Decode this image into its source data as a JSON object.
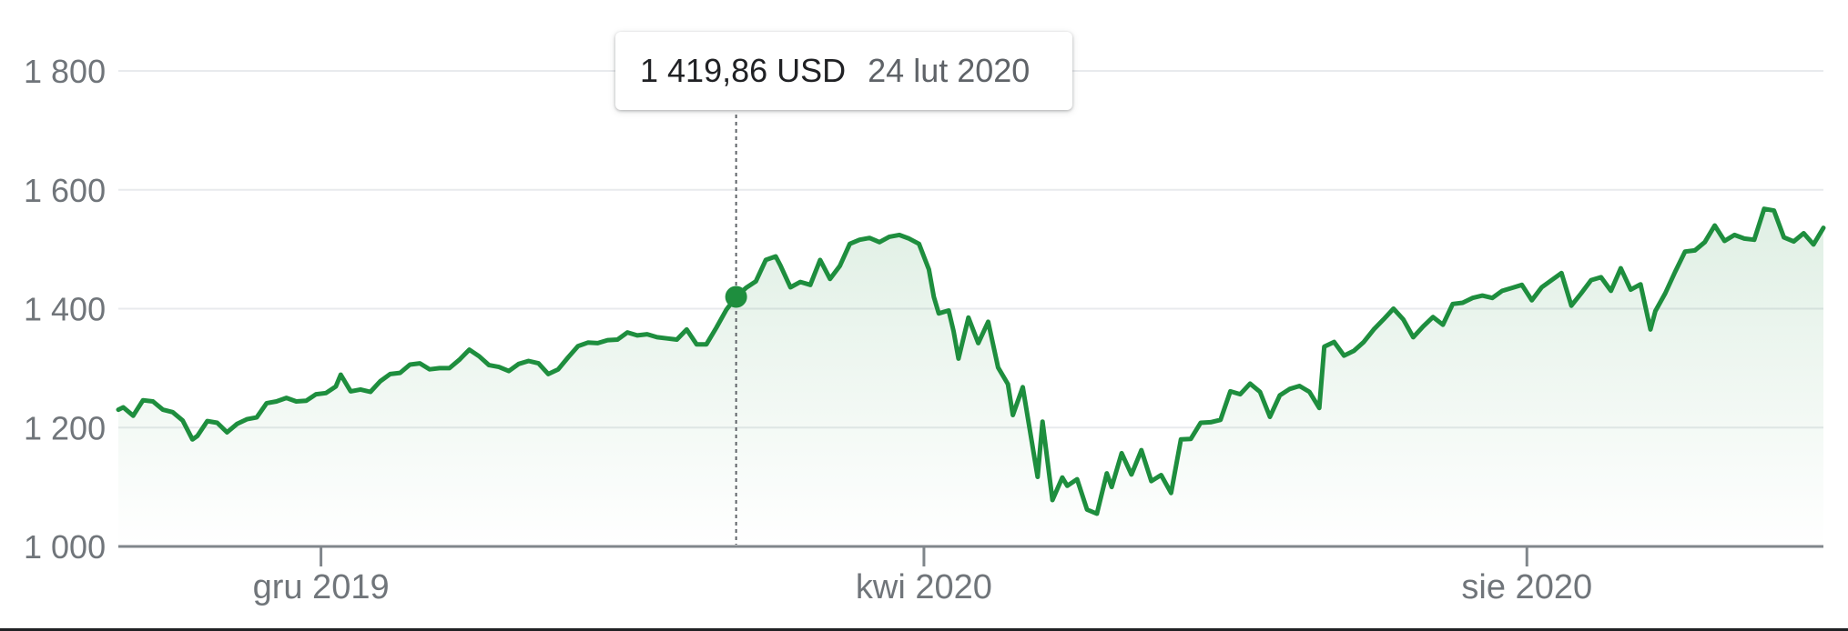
{
  "tooltip": {
    "value": "1 419,86 USD",
    "date": "24 lut 2020"
  },
  "colors": {
    "line": "#1e8e3e",
    "axis": "#80868b",
    "grid": "#e8eaed",
    "label": "#70757a"
  },
  "chart_data": {
    "type": "area",
    "title": "",
    "xlabel": "",
    "ylabel": "",
    "ylim": [
      1000,
      1800
    ],
    "yticks": [
      {
        "value": 1000,
        "label": "1 000"
      },
      {
        "value": 1200,
        "label": "1 200"
      },
      {
        "value": 1400,
        "label": "1 400"
      },
      {
        "value": 1600,
        "label": "1 600"
      },
      {
        "value": 1800,
        "label": "1 800"
      }
    ],
    "xlim": [
      "2019-10-21",
      "2020-09-30"
    ],
    "xticks": [
      {
        "date": "2019-12-01",
        "label": "gru 2019"
      },
      {
        "date": "2020-04-01",
        "label": "kwi 2020"
      },
      {
        "date": "2020-08-01",
        "label": "sie 2020"
      }
    ],
    "grid": true,
    "highlight": {
      "date": "2020-02-24",
      "value": 1419.86
    },
    "series": [
      {
        "points": [
          [
            "2019-10-21",
            1230
          ],
          [
            "2019-10-22",
            1234
          ],
          [
            "2019-10-24",
            1220
          ],
          [
            "2019-10-26",
            1246
          ],
          [
            "2019-10-28",
            1244
          ],
          [
            "2019-10-30",
            1230
          ],
          [
            "2019-11-01",
            1226
          ],
          [
            "2019-11-03",
            1212
          ],
          [
            "2019-11-05",
            1180
          ],
          [
            "2019-11-06",
            1186
          ],
          [
            "2019-11-08",
            1211
          ],
          [
            "2019-11-10",
            1208
          ],
          [
            "2019-11-12",
            1192
          ],
          [
            "2019-11-14",
            1206
          ],
          [
            "2019-11-16",
            1214
          ],
          [
            "2019-11-18",
            1217
          ],
          [
            "2019-11-20",
            1241
          ],
          [
            "2019-11-22",
            1244
          ],
          [
            "2019-11-24",
            1250
          ],
          [
            "2019-11-26",
            1244
          ],
          [
            "2019-11-28",
            1245
          ],
          [
            "2019-11-30",
            1256
          ],
          [
            "2019-12-02",
            1258
          ],
          [
            "2019-12-04",
            1269
          ],
          [
            "2019-12-05",
            1289
          ],
          [
            "2019-12-07",
            1261
          ],
          [
            "2019-12-09",
            1264
          ],
          [
            "2019-12-11",
            1260
          ],
          [
            "2019-12-13",
            1278
          ],
          [
            "2019-12-15",
            1290
          ],
          [
            "2019-12-17",
            1292
          ],
          [
            "2019-12-19",
            1306
          ],
          [
            "2019-12-21",
            1308
          ],
          [
            "2019-12-23",
            1298
          ],
          [
            "2019-12-25",
            1300
          ],
          [
            "2019-12-27",
            1300
          ],
          [
            "2019-12-29",
            1314
          ],
          [
            "2019-12-31",
            1331
          ],
          [
            "2020-01-02",
            1320
          ],
          [
            "2020-01-04",
            1305
          ],
          [
            "2020-01-06",
            1302
          ],
          [
            "2020-01-08",
            1295
          ],
          [
            "2020-01-10",
            1307
          ],
          [
            "2020-01-12",
            1312
          ],
          [
            "2020-01-14",
            1308
          ],
          [
            "2020-01-16",
            1290
          ],
          [
            "2020-01-18",
            1298
          ],
          [
            "2020-01-20",
            1318
          ],
          [
            "2020-01-22",
            1337
          ],
          [
            "2020-01-24",
            1343
          ],
          [
            "2020-01-26",
            1342
          ],
          [
            "2020-01-28",
            1347
          ],
          [
            "2020-01-30",
            1348
          ],
          [
            "2020-02-01",
            1360
          ],
          [
            "2020-02-03",
            1355
          ],
          [
            "2020-02-05",
            1357
          ],
          [
            "2020-02-07",
            1352
          ],
          [
            "2020-02-09",
            1350
          ],
          [
            "2020-02-11",
            1348
          ],
          [
            "2020-02-13",
            1365
          ],
          [
            "2020-02-15",
            1340
          ],
          [
            "2020-02-17",
            1340
          ],
          [
            "2020-02-19",
            1368
          ],
          [
            "2020-02-21",
            1398
          ],
          [
            "2020-02-23",
            1419.86
          ],
          [
            "2020-02-25",
            1435
          ],
          [
            "2020-02-27",
            1446
          ],
          [
            "2020-02-29",
            1482
          ],
          [
            "2020-03-02",
            1488
          ],
          [
            "2020-03-03",
            1472
          ],
          [
            "2020-03-05",
            1436
          ],
          [
            "2020-03-07",
            1445
          ],
          [
            "2020-03-09",
            1440
          ],
          [
            "2020-03-11",
            1482
          ],
          [
            "2020-03-13",
            1450
          ],
          [
            "2020-03-15",
            1472
          ],
          [
            "2020-03-17",
            1509
          ],
          [
            "2020-03-19",
            1516
          ],
          [
            "2020-03-21",
            1519
          ],
          [
            "2020-03-23",
            1512
          ],
          [
            "2020-03-25",
            1521
          ],
          [
            "2020-03-27",
            1524
          ],
          [
            "2020-03-29",
            1518
          ],
          [
            "2020-03-31",
            1509
          ],
          [
            "2020-04-02",
            1466
          ],
          [
            "2020-04-03",
            1419.86
          ],
          [
            "2020-04-04",
            1392
          ],
          [
            "2020-04-06",
            1397
          ],
          [
            "2020-04-07",
            1362
          ],
          [
            "2020-04-08",
            1316
          ],
          [
            "2020-04-10",
            1385
          ],
          [
            "2020-04-12",
            1342
          ],
          [
            "2020-04-14",
            1378
          ],
          [
            "2020-04-16",
            1301
          ],
          [
            "2020-04-18",
            1273
          ],
          [
            "2020-04-19",
            1221
          ],
          [
            "2020-04-21",
            1268
          ],
          [
            "2020-04-24",
            1117
          ],
          [
            "2020-04-25",
            1210
          ],
          [
            "2020-04-27",
            1078
          ],
          [
            "2020-04-29",
            1116
          ],
          [
            "2020-04-30",
            1102
          ],
          [
            "2020-05-02",
            1113
          ],
          [
            "2020-05-04",
            1062
          ],
          [
            "2020-05-06",
            1055
          ],
          [
            "2020-05-08",
            1123
          ],
          [
            "2020-05-09",
            1100
          ],
          [
            "2020-05-11",
            1157
          ],
          [
            "2020-05-13",
            1121
          ],
          [
            "2020-05-15",
            1162
          ],
          [
            "2020-05-17",
            1110
          ],
          [
            "2020-05-19",
            1120
          ],
          [
            "2020-05-21",
            1090
          ],
          [
            "2020-05-23",
            1180
          ],
          [
            "2020-05-25",
            1181
          ],
          [
            "2020-05-27",
            1208
          ],
          [
            "2020-05-29",
            1209
          ],
          [
            "2020-05-31",
            1213
          ],
          [
            "2020-06-02",
            1261
          ],
          [
            "2020-06-04",
            1256
          ],
          [
            "2020-06-06",
            1274
          ],
          [
            "2020-06-08",
            1260
          ],
          [
            "2020-06-10",
            1218
          ],
          [
            "2020-06-12",
            1254
          ],
          [
            "2020-06-14",
            1265
          ],
          [
            "2020-06-16",
            1270
          ],
          [
            "2020-06-18",
            1260
          ],
          [
            "2020-06-20",
            1233
          ],
          [
            "2020-06-21",
            1336
          ],
          [
            "2020-06-23",
            1344
          ],
          [
            "2020-06-25",
            1321
          ],
          [
            "2020-06-27",
            1329
          ],
          [
            "2020-06-29",
            1344
          ],
          [
            "2020-07-01",
            1365
          ],
          [
            "2020-07-03",
            1382
          ],
          [
            "2020-07-05",
            1400
          ],
          [
            "2020-07-07",
            1382
          ],
          [
            "2020-07-09",
            1352
          ],
          [
            "2020-07-11",
            1370
          ],
          [
            "2020-07-13",
            1386
          ],
          [
            "2020-07-15",
            1373
          ],
          [
            "2020-07-17",
            1408
          ],
          [
            "2020-07-19",
            1410
          ],
          [
            "2020-07-21",
            1418
          ],
          [
            "2020-07-23",
            1422
          ],
          [
            "2020-07-25",
            1418
          ],
          [
            "2020-07-27",
            1430
          ],
          [
            "2020-07-29",
            1435
          ],
          [
            "2020-07-31",
            1440
          ],
          [
            "2020-08-02",
            1414
          ],
          [
            "2020-08-04",
            1436
          ],
          [
            "2020-08-06",
            1448
          ],
          [
            "2020-08-08",
            1460
          ],
          [
            "2020-08-10",
            1405
          ],
          [
            "2020-08-12",
            1426
          ],
          [
            "2020-08-14",
            1448
          ],
          [
            "2020-08-16",
            1453
          ],
          [
            "2020-08-18",
            1430
          ],
          [
            "2020-08-20",
            1468
          ],
          [
            "2020-08-22",
            1432
          ],
          [
            "2020-08-24",
            1441
          ],
          [
            "2020-08-26",
            1365
          ],
          [
            "2020-08-27",
            1396
          ],
          [
            "2020-08-29",
            1426
          ],
          [
            "2020-08-31",
            1462
          ],
          [
            "2020-09-02",
            1496
          ],
          [
            "2020-09-04",
            1498
          ],
          [
            "2020-09-06",
            1512
          ],
          [
            "2020-09-08",
            1540
          ],
          [
            "2020-09-10",
            1514
          ],
          [
            "2020-09-12",
            1524
          ],
          [
            "2020-09-14",
            1518
          ],
          [
            "2020-09-16",
            1516
          ],
          [
            "2020-09-18",
            1568
          ],
          [
            "2020-09-20",
            1565
          ],
          [
            "2020-09-22",
            1520
          ],
          [
            "2020-09-24",
            1513
          ],
          [
            "2020-09-26",
            1527
          ],
          [
            "2020-09-28",
            1508
          ],
          [
            "2020-09-30",
            1536
          ]
        ]
      }
    ]
  }
}
